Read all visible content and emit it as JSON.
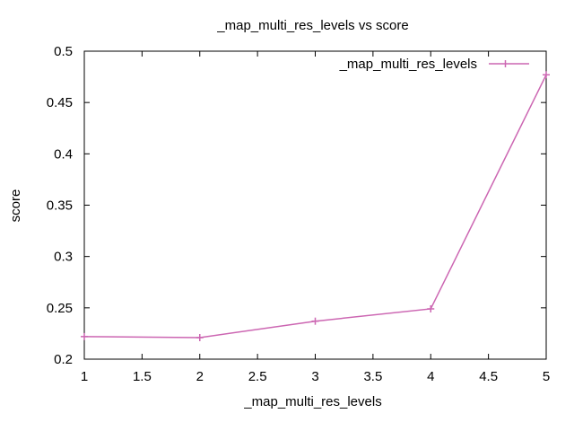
{
  "chart_data": {
    "type": "line",
    "title": "_map_multi_res_levels vs score",
    "xlabel": "_map_multi_res_levels",
    "ylabel": "score",
    "xlim": [
      1,
      5
    ],
    "ylim": [
      0.2,
      0.5
    ],
    "xticks": [
      "1",
      "1.5",
      "2",
      "2.5",
      "3",
      "3.5",
      "4",
      "4.5",
      "5"
    ],
    "yticks": [
      "0.2",
      "0.25",
      "0.3",
      "0.35",
      "0.4",
      "0.45",
      "0.5"
    ],
    "grid": false,
    "legend_position": "top-right",
    "series": [
      {
        "name": "_map_multi_res_levels",
        "color": "#cc66b2",
        "marker": "plus",
        "x": [
          1,
          2,
          3,
          4,
          5
        ],
        "y": [
          0.222,
          0.221,
          0.237,
          0.249,
          0.477
        ]
      }
    ]
  }
}
